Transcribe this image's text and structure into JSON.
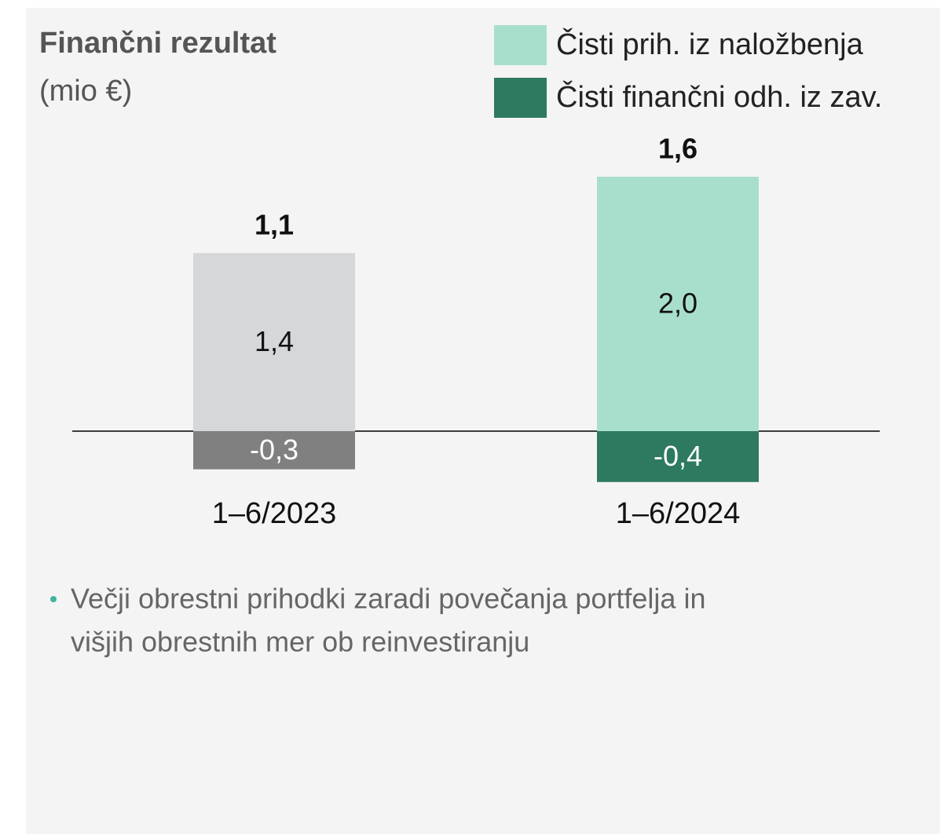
{
  "chart_data": {
    "type": "stacked_bar",
    "title": "Finančni rezultat",
    "subtitle": "(mio €)",
    "categories": [
      "1–6/2023",
      "1–6/2024"
    ],
    "series": [
      {
        "name": "Čisti prih. iz naložbenja",
        "color": "#a8dfcc",
        "bar_colors": [
          "#d6d7d9",
          "#a8dfcc"
        ],
        "values": [
          1.4,
          2.0
        ],
        "value_labels": [
          "1,4",
          "2,0"
        ]
      },
      {
        "name": "Čisti finančni odh. iz zav.",
        "color": "#2e7a60",
        "bar_colors": [
          "#808080",
          "#2e7a60"
        ],
        "values": [
          -0.3,
          -0.4
        ],
        "value_labels": [
          "-0,3",
          "-0,4"
        ]
      }
    ],
    "totals": [
      1.1,
      1.6
    ],
    "total_labels": [
      "1,1",
      "1,6"
    ],
    "notes": [
      "Večji obrestni prihodki zaradi povečanja portfelja in",
      "višjih obrestnih mer ob reinvestiranju"
    ]
  }
}
